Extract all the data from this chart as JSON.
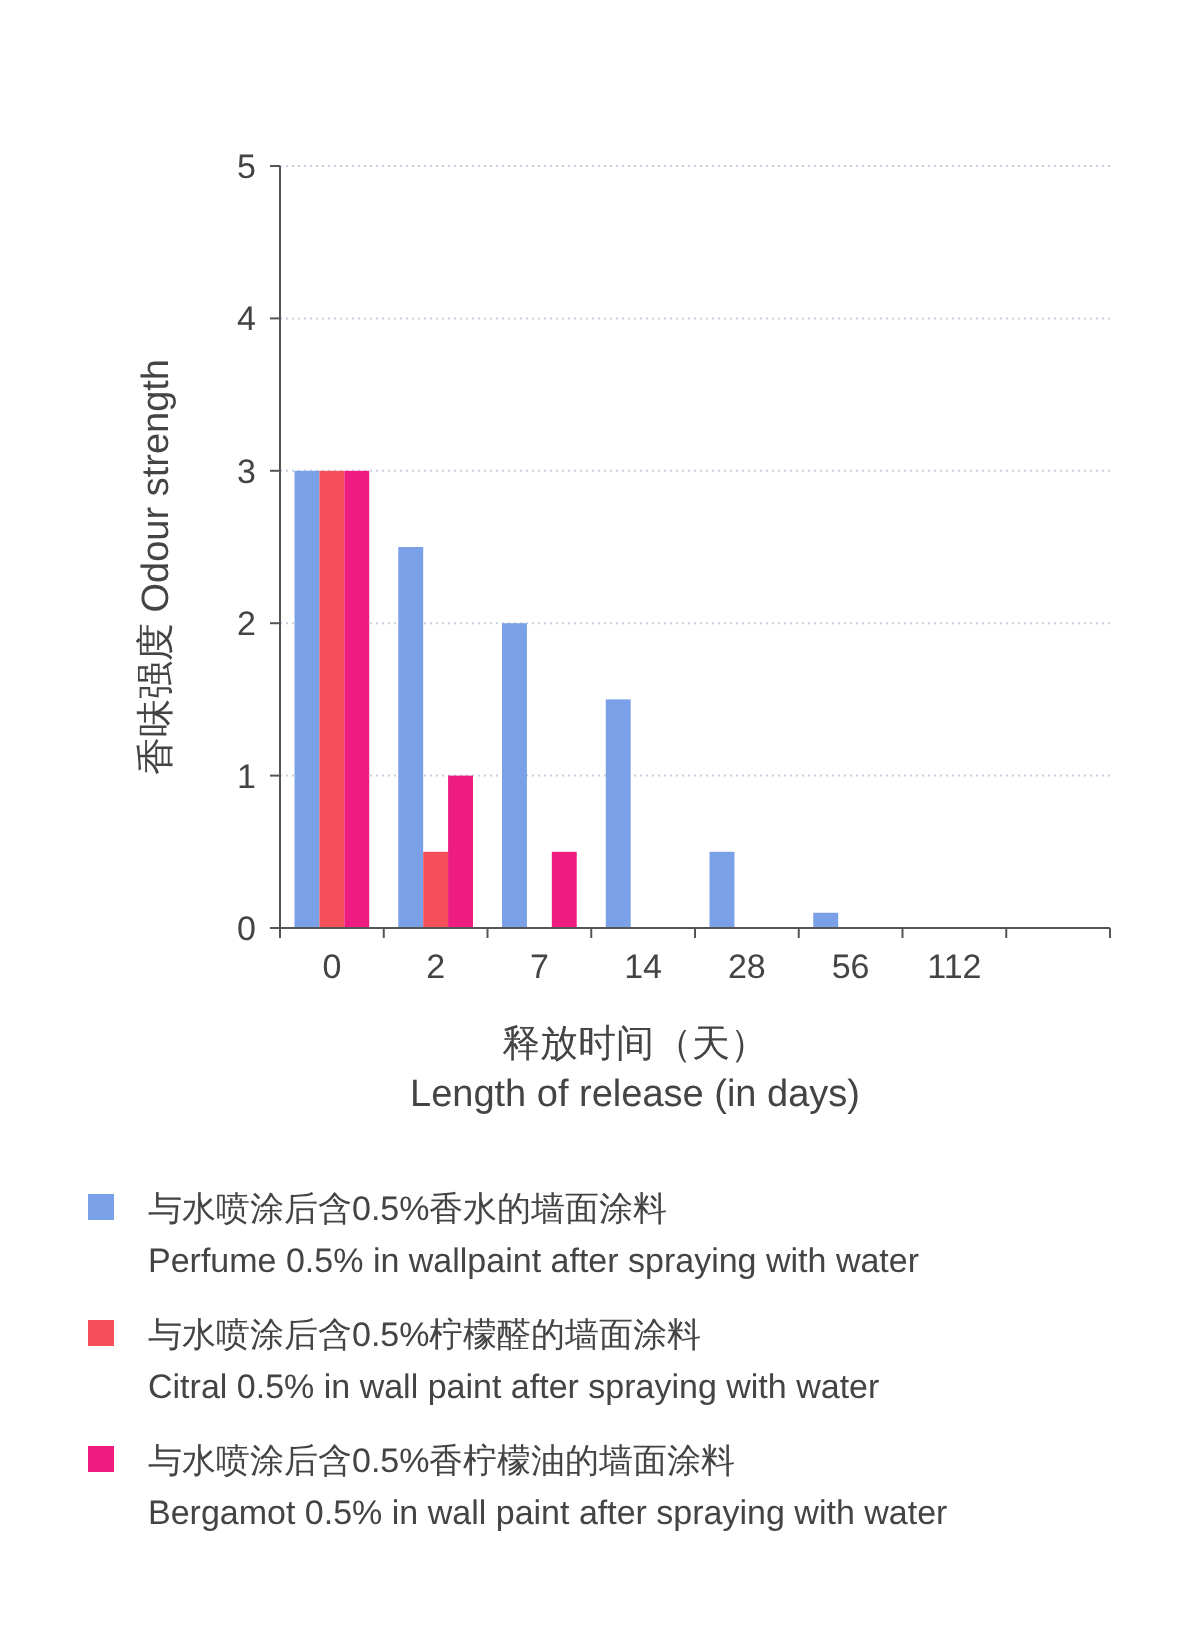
{
  "chart_data": {
    "type": "bar",
    "xlabel": "释放时间（天）\nLength of release (in days)",
    "ylabel": "香味强度 Odour strength",
    "categories": [
      "0",
      "2",
      "7",
      "14",
      "28",
      "56",
      "112",
      null
    ],
    "series": [
      {
        "name": "与水喷涂后含0.5%香水的墙面涂料\nPerfume 0.5% in wallpaint after spraying with water",
        "color": "#7aa0e8",
        "values": [
          3,
          2.5,
          2,
          1.5,
          0.5,
          0.1,
          0,
          null
        ]
      },
      {
        "name": "与水喷涂后含0.5%柠檬醛的墙面涂料\nCitral 0.5% in wall paint after spraying with water",
        "color": "#f5505a",
        "values": [
          3,
          0.5,
          0,
          0,
          0,
          0,
          0,
          null
        ]
      },
      {
        "name": "与水喷涂后含0.5%香柠檬油的墙面涂料\nBergamot 0.5% in wall paint after spraying with water",
        "color": "#ee1c80",
        "values": [
          3,
          1,
          0.5,
          0,
          0,
          0,
          0,
          null
        ]
      }
    ],
    "ylim": [
      0,
      5
    ],
    "yticks": [
      0,
      1,
      2,
      3,
      4,
      5
    ],
    "grid": "y",
    "legend": "bottom"
  }
}
